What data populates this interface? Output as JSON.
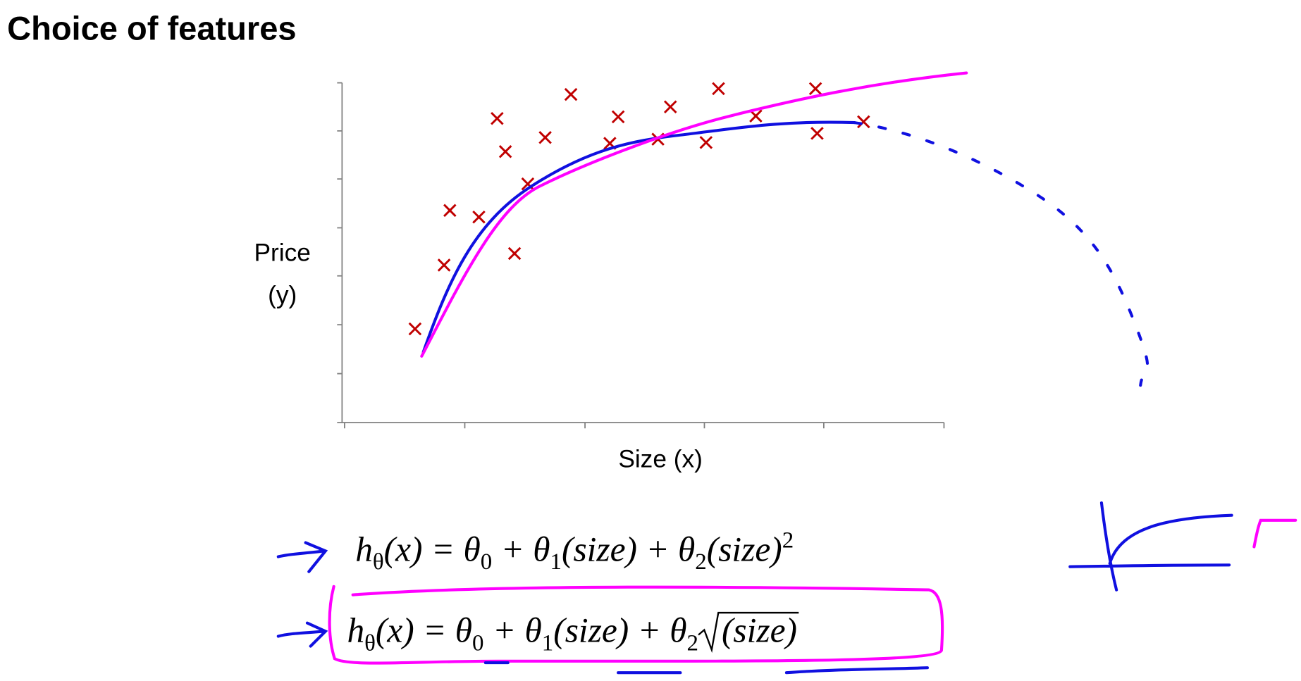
{
  "title": "Choice of features",
  "plot": {
    "y_label": [
      "Price",
      "(y)"
    ],
    "x_label": "Size (x)"
  },
  "formulas": [
    {
      "parts": [
        [
          "h",
          ""
        ],
        [
          "θ",
          "sub"
        ],
        [
          "(x) = θ",
          ""
        ],
        [
          "0",
          "sub"
        ],
        [
          " + θ",
          ""
        ],
        [
          "1",
          "sub"
        ],
        [
          "(size) + θ",
          ""
        ],
        [
          "2",
          "sub"
        ],
        [
          "(size)",
          ""
        ],
        [
          "2",
          "sup"
        ]
      ]
    },
    {
      "parts": [
        [
          "h",
          ""
        ],
        [
          "θ",
          "sub"
        ],
        [
          "(x) = θ",
          ""
        ],
        [
          "0",
          "sub"
        ],
        [
          " + θ",
          ""
        ],
        [
          "1",
          "sub"
        ],
        [
          "(size) + θ",
          ""
        ],
        [
          "2",
          "sub"
        ],
        [
          "(size)",
          "sqrt"
        ]
      ]
    }
  ]
}
